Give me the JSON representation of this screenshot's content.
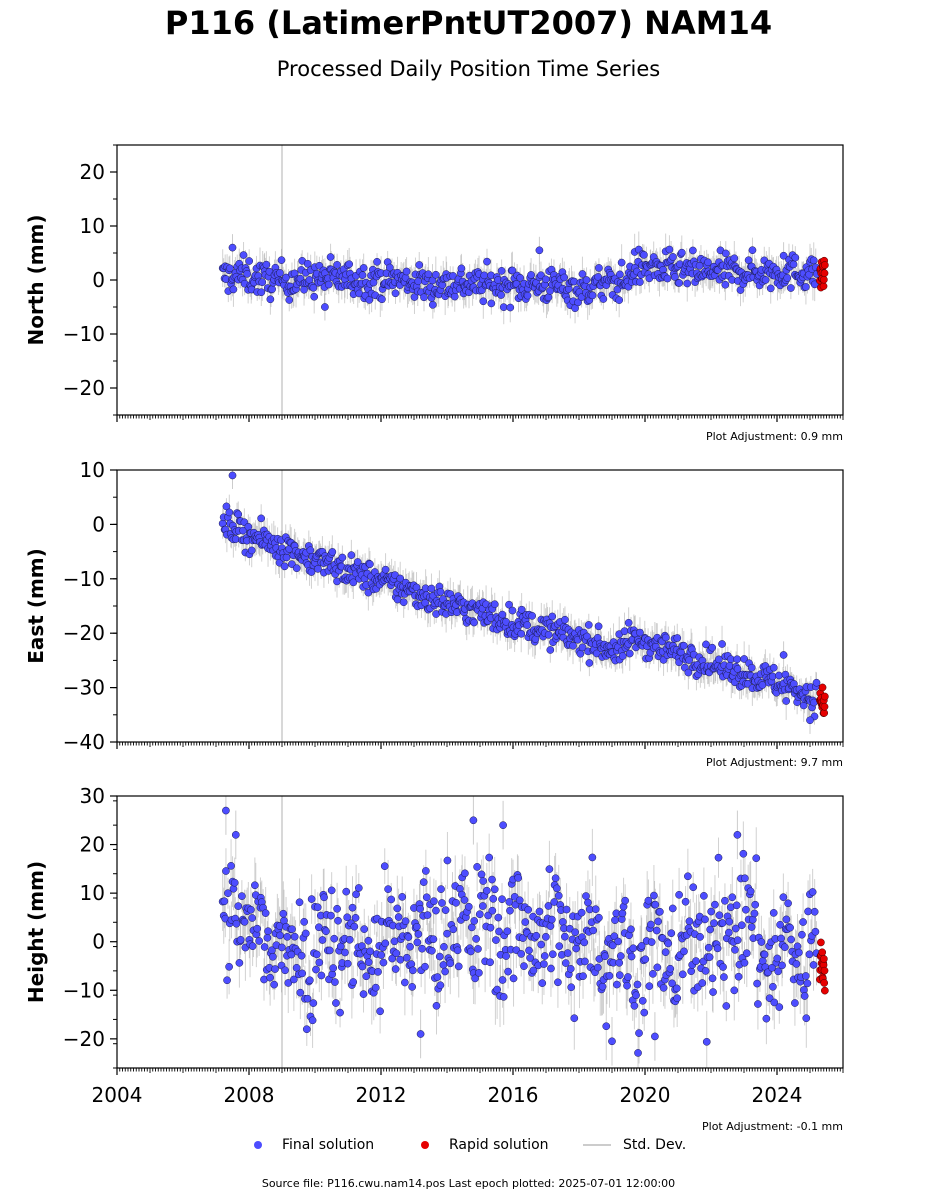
{
  "header": {
    "title": "P116 (LatimerPntUT2007) NAM14",
    "subtitle": "Processed Daily Position Time Series"
  },
  "legend": {
    "final_label": "Final solution",
    "rapid_label": "Rapid solution",
    "stddev_label": "Std. Dev."
  },
  "footer": {
    "source": "Source file: P116.cwu.nam14.pos  Last epoch plotted: 2025-07-01 12:00:00"
  },
  "colors": {
    "final": "#4d4dff",
    "rapid": "#e60000",
    "stddev": "#999999",
    "marker_edge": "#1a1a4d",
    "vline": "#cccccc"
  },
  "chart_data": [
    {
      "type": "scatter",
      "ylabel": "North (mm)",
      "xlim": [
        2004,
        2026
      ],
      "ylim": [
        -25,
        25
      ],
      "yticks": [
        -20,
        -10,
        0,
        10,
        20
      ],
      "xticks": [
        2004,
        2008,
        2012,
        2016,
        2020,
        2024
      ],
      "show_xticklabels": false,
      "vline_x": 2009.0,
      "adjustment": "Plot Adjustment: 0.9 mm",
      "final": {
        "x": [
          2007.2,
          2007.8,
          2008.5,
          2009.5,
          2010.5,
          2011.5,
          2012.5,
          2013.5,
          2014.5,
          2015.5,
          2016.5,
          2017.5,
          2018.0,
          2018.5,
          2019.2,
          2019.5,
          2019.6,
          2020.0,
          2020.5,
          2021.5,
          2022.5,
          2023.5,
          2024.5,
          2025.2
        ],
        "y": [
          0.5,
          1.0,
          0.0,
          0.0,
          0.5,
          0.0,
          0.0,
          -1.0,
          -0.5,
          -1.0,
          -1.0,
          -1.0,
          -2.0,
          -1.0,
          -0.5,
          0.0,
          2.0,
          2.5,
          2.0,
          1.5,
          1.5,
          1.5,
          1.5,
          1.5
        ],
        "scatter": 1.6,
        "stddev": 2.5
      },
      "outliers": [
        [
          2007.5,
          6.0
        ],
        [
          2016.8,
          5.5
        ],
        [
          2024.2,
          4.5
        ],
        [
          2010.3,
          -5.0
        ]
      ],
      "rapid": {
        "x": [
          2025.3,
          2025.45
        ],
        "y": [
          1.0,
          1.5
        ]
      }
    },
    {
      "type": "scatter",
      "ylabel": "East (mm)",
      "xlim": [
        2004,
        2026
      ],
      "ylim": [
        -40,
        10
      ],
      "yticks": [
        -40,
        -30,
        -20,
        -10,
        0,
        10
      ],
      "xticks": [
        2004,
        2008,
        2012,
        2016,
        2020,
        2024
      ],
      "show_xticklabels": false,
      "vline_x": 2009.0,
      "adjustment": "Plot Adjustment: 9.7 mm",
      "final": {
        "x": [
          2007.2,
          2008.0,
          2010.0,
          2012.0,
          2014.0,
          2016.0,
          2018.0,
          2019.3,
          2019.5,
          2020.0,
          2022.0,
          2024.0,
          2025.2
        ],
        "y": [
          0.5,
          -2.0,
          -6.5,
          -10.5,
          -14.5,
          -18.0,
          -21.0,
          -23.5,
          -21.0,
          -21.5,
          -25.5,
          -29.0,
          -32.0
        ],
        "scatter": 1.4,
        "stddev": 2.5
      },
      "outliers": [
        [
          2007.5,
          9.0
        ],
        [
          2024.2,
          -24.0
        ],
        [
          2025.0,
          -36.0
        ]
      ],
      "rapid": {
        "x": [
          2025.3,
          2025.45
        ],
        "y": [
          -32.0,
          -33.5
        ]
      }
    },
    {
      "type": "scatter",
      "ylabel": "Height (mm)",
      "xlim": [
        2004,
        2026
      ],
      "ylim": [
        -26,
        30
      ],
      "yticks": [
        -20,
        -10,
        0,
        10,
        20,
        30
      ],
      "xticks": [
        2004,
        2008,
        2012,
        2016,
        2020,
        2024
      ],
      "xticklabels": [
        "2004",
        "2008",
        "2012",
        "2016",
        "2020",
        "2024"
      ],
      "show_xticklabels": true,
      "vline_x": 2009.0,
      "adjustment": "Plot Adjustment: -0.1 mm",
      "final": {
        "x": [
          2007.2,
          2007.7,
          2008.5,
          2009.5,
          2010.5,
          2011.5,
          2012.5,
          2013.5,
          2014.5,
          2015.5,
          2016.5,
          2017.5,
          2018.5,
          2019.3,
          2019.5,
          2020.5,
          2021.5,
          2022.5,
          2023.0,
          2023.5,
          2024.5,
          2025.2
        ],
        "y": [
          2.0,
          5.0,
          0.0,
          -2.0,
          2.0,
          -2.0,
          1.0,
          0.0,
          5.0,
          2.0,
          3.0,
          0.0,
          2.0,
          -2.0,
          -3.0,
          -3.0,
          -1.0,
          1.0,
          5.0,
          -3.0,
          -2.0,
          -1.0
        ],
        "scatter": 6.5,
        "stddev": 5.0
      },
      "outliers": [
        [
          2007.3,
          27.0
        ],
        [
          2007.6,
          22.0
        ],
        [
          2014.8,
          25.0
        ],
        [
          2015.7,
          24.0
        ],
        [
          2013.2,
          -19.0
        ],
        [
          2019.0,
          -20.5
        ],
        [
          2020.3,
          -19.5
        ],
        [
          2022.8,
          22.0
        ]
      ],
      "rapid": {
        "x": [
          2025.3,
          2025.45
        ],
        "y": [
          -3.0,
          -5.0
        ]
      }
    }
  ]
}
